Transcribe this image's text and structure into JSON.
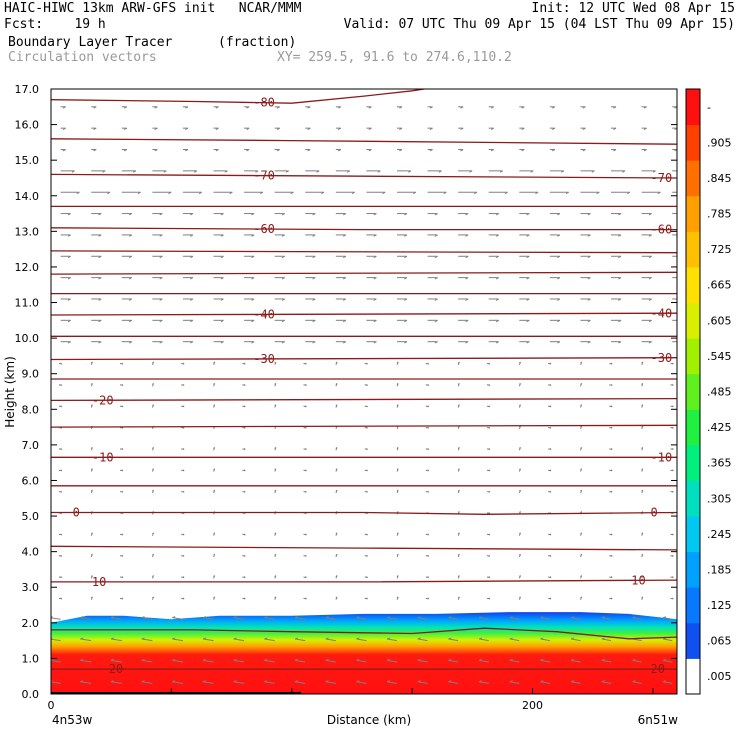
{
  "header": {
    "line1_left": "HAIC-HIWC 13km ARW-GFS init   NCAR/MMM",
    "line1_right": "Init: 12 UTC Wed 08 Apr 15",
    "line2_left": "Fcst:    19 h",
    "line2_right": "Valid: 07 UTC Thu 09 Apr 15 (04 LST Thu 09 Apr 15)",
    "field_name": "Boundary Layer Tracer",
    "field_units": "(fraction)",
    "vector_name": "Circulation vectors",
    "xy_range": "XY= 259.5, 91.6 to 274.6,110.2"
  },
  "chart_data": {
    "type": "heatmap",
    "ylabel": "Height (km)",
    "xlabel": "Distance (km)",
    "ylim": [
      0,
      17
    ],
    "xlim": [
      0,
      260
    ],
    "y_ticks": [
      "0.0",
      "1.0",
      "2.0",
      "3.0",
      "4.0",
      "5.0",
      "6.0",
      "7.0",
      "8.0",
      "9.0",
      "10.0",
      "11.0",
      "12.0",
      "13.0",
      "14.0",
      "15.0",
      "16.0",
      "17.0"
    ],
    "x_ticks": [
      {
        "value": 0,
        "label": "0"
      },
      {
        "value": 200,
        "label": "200"
      }
    ],
    "x_endpoints": {
      "left": "4n53w",
      "right": "6n51w"
    },
    "colorbar": {
      "labels": [
        ".005",
        ".065",
        ".125",
        ".185",
        ".245",
        ".305",
        ".365",
        ".425",
        ".485",
        ".545",
        ".605",
        ".665",
        ".725",
        ".785",
        ".845",
        ".905",
        "-"
      ],
      "colors": [
        "#ffffff",
        "#1050f0",
        "#0878ff",
        "#00a0ff",
        "#00c8f0",
        "#00e0c0",
        "#00f080",
        "#20f040",
        "#60f020",
        "#a0f000",
        "#d8f000",
        "#ffe000",
        "#ffc000",
        "#ffa000",
        "#ff7000",
        "#ff4000",
        "#ff1010"
      ]
    },
    "tracer_top": [
      [
        0,
        2.0
      ],
      [
        15,
        2.2
      ],
      [
        30,
        2.2
      ],
      [
        50,
        2.1
      ],
      [
        70,
        2.2
      ],
      [
        100,
        2.2
      ],
      [
        130,
        2.25
      ],
      [
        160,
        2.25
      ],
      [
        190,
        2.3
      ],
      [
        220,
        2.3
      ],
      [
        240,
        2.25
      ],
      [
        260,
        2.1
      ]
    ],
    "temperature_contours": [
      {
        "label": "-80",
        "label_x": [
          84
        ],
        "points": [
          [
            0,
            16.7
          ],
          [
            60,
            16.65
          ],
          [
            100,
            16.6
          ],
          [
            130,
            16.8
          ],
          [
            150,
            16.95
          ],
          [
            155,
            17.0
          ]
        ]
      },
      {
        "label": "",
        "label_x": [],
        "points": [
          [
            0,
            15.6
          ],
          [
            100,
            15.55
          ],
          [
            180,
            15.5
          ],
          [
            260,
            15.45
          ]
        ]
      },
      {
        "label": "-70",
        "label_x": [
          84,
          249
        ],
        "points": [
          [
            0,
            14.6
          ],
          [
            130,
            14.55
          ],
          [
            260,
            14.5
          ]
        ]
      },
      {
        "label": "",
        "label_x": [],
        "points": [
          [
            0,
            13.7
          ],
          [
            130,
            13.7
          ],
          [
            260,
            13.7
          ]
        ]
      },
      {
        "label": "-60",
        "label_x": [
          84,
          249
        ],
        "points": [
          [
            0,
            13.1
          ],
          [
            130,
            13.05
          ],
          [
            260,
            13.05
          ]
        ]
      },
      {
        "label": "",
        "label_x": [],
        "points": [
          [
            0,
            12.45
          ],
          [
            260,
            12.4
          ]
        ]
      },
      {
        "label": "",
        "label_x": [],
        "points": [
          [
            0,
            11.8
          ],
          [
            260,
            11.85
          ]
        ]
      },
      {
        "label": "",
        "label_x": [],
        "points": [
          [
            0,
            11.25
          ],
          [
            260,
            11.25
          ]
        ]
      },
      {
        "label": "-40",
        "label_x": [
          84,
          249
        ],
        "points": [
          [
            0,
            10.65
          ],
          [
            260,
            10.7
          ]
        ]
      },
      {
        "label": "",
        "label_x": [],
        "points": [
          [
            0,
            10.05
          ],
          [
            260,
            10.05
          ]
        ]
      },
      {
        "label": "-30",
        "label_x": [
          84,
          249
        ],
        "points": [
          [
            0,
            9.4
          ],
          [
            260,
            9.45
          ]
        ]
      },
      {
        "label": "",
        "label_x": [],
        "points": [
          [
            0,
            8.85
          ],
          [
            260,
            8.85
          ]
        ]
      },
      {
        "label": "-20",
        "label_x": [
          17
        ],
        "points": [
          [
            0,
            8.25
          ],
          [
            260,
            8.3
          ]
        ]
      },
      {
        "label": "",
        "label_x": [],
        "points": [
          [
            0,
            7.5
          ],
          [
            260,
            7.55
          ]
        ]
      },
      {
        "label": "-10",
        "label_x": [
          17,
          249
        ],
        "points": [
          [
            0,
            6.65
          ],
          [
            260,
            6.65
          ]
        ]
      },
      {
        "label": "",
        "label_x": [],
        "points": [
          [
            0,
            5.85
          ],
          [
            260,
            5.85
          ]
        ]
      },
      {
        "label": "0",
        "label_x": [
          9,
          249
        ],
        "points": [
          [
            0,
            5.1
          ],
          [
            130,
            5.1
          ],
          [
            180,
            5.05
          ],
          [
            260,
            5.1
          ]
        ]
      },
      {
        "label": "",
        "label_x": [],
        "points": [
          [
            0,
            4.15
          ],
          [
            130,
            4.1
          ],
          [
            260,
            4.05
          ]
        ]
      },
      {
        "label": "10",
        "label_x": [
          17,
          241
        ],
        "points": [
          [
            0,
            3.15
          ],
          [
            130,
            3.15
          ],
          [
            260,
            3.2
          ]
        ]
      },
      {
        "label": "",
        "label_x": [],
        "points": [
          [
            0,
            1.8
          ],
          [
            60,
            1.8
          ],
          [
            100,
            1.75
          ],
          [
            150,
            1.7
          ],
          [
            180,
            1.85
          ],
          [
            210,
            1.75
          ],
          [
            240,
            1.55
          ],
          [
            260,
            1.6
          ]
        ]
      },
      {
        "label": "20",
        "label_x": [
          24,
          249
        ],
        "points": [
          [
            0,
            0.7
          ],
          [
            130,
            0.7
          ],
          [
            260,
            0.7
          ]
        ]
      }
    ]
  }
}
